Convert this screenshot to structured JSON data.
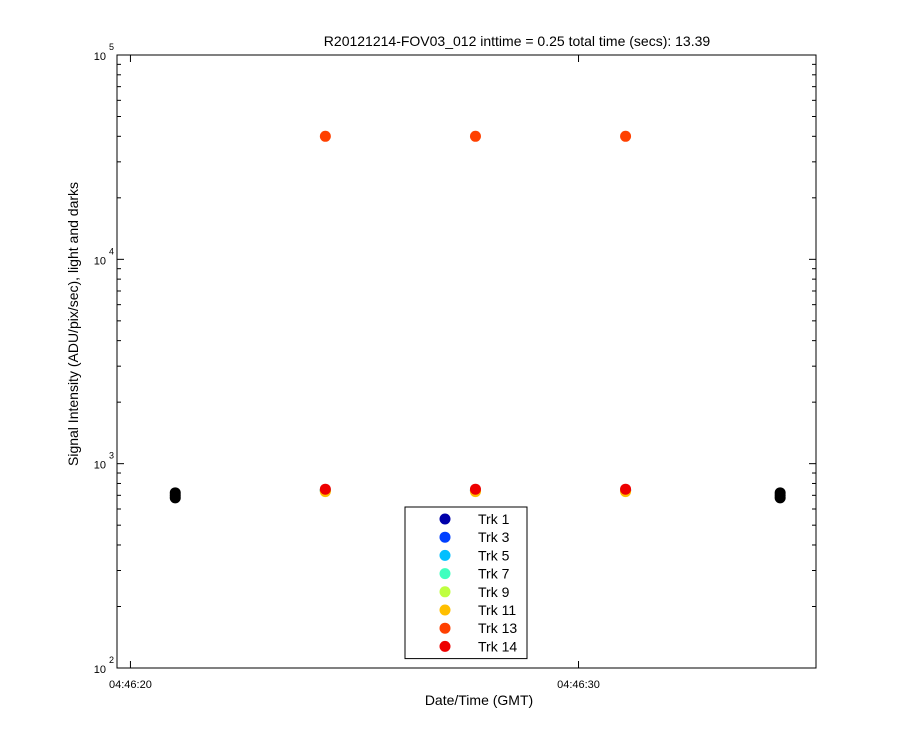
{
  "chart_data": {
    "type": "scatter",
    "title": "R20121214-FOV03_012 inttime = 0.25 total time (secs): 13.39",
    "xlabel": "Date/Time (GMT)",
    "ylabel": "Signal Intensity (ADU/pix/sec), light and darks",
    "yscale": "log",
    "ylim": [
      100,
      100000
    ],
    "xlim_seconds_after_04_46_20": [
      -0.3,
      15.3
    ],
    "x_ticks": [
      {
        "label": "04:46:20",
        "seconds": 0
      },
      {
        "label": "04:46:30",
        "seconds": 10
      }
    ],
    "y_ticks": [
      {
        "base": "10",
        "exp": "2",
        "value": 100
      },
      {
        "base": "10",
        "exp": "3",
        "value": 1000
      },
      {
        "base": "10",
        "exp": "4",
        "value": 10000
      },
      {
        "base": "10",
        "exp": "5",
        "value": 100000
      }
    ],
    "grid": false,
    "legend_position": "bottom-center",
    "series": [
      {
        "name": "Trk 1",
        "color": "#0000aa",
        "x": [
          4.35,
          7.7,
          11.05
        ],
        "y": [
          740,
          740,
          740
        ]
      },
      {
        "name": "Trk 3",
        "color": "#0040ff",
        "x": [
          4.35,
          7.7,
          11.05
        ],
        "y": [
          740,
          740,
          740
        ]
      },
      {
        "name": "Trk 5",
        "color": "#00bfff",
        "x": [
          4.35,
          7.7,
          11.05
        ],
        "y": [
          740,
          740,
          740
        ]
      },
      {
        "name": "Trk 7",
        "color": "#40ffbf",
        "x": [
          4.35,
          7.7,
          11.05
        ],
        "y": [
          740,
          740,
          740
        ]
      },
      {
        "name": "Trk 9",
        "color": "#bfff40",
        "x": [
          4.35,
          7.7,
          11.05
        ],
        "y": [
          740,
          740,
          740
        ]
      },
      {
        "name": "Trk 11",
        "color": "#ffbf00",
        "x": [
          4.35,
          7.7,
          11.05
        ],
        "y": [
          730,
          730,
          730
        ]
      },
      {
        "name": "Trk 13",
        "color": "#ff4000",
        "x": [
          4.35,
          7.7,
          11.05
        ],
        "y": [
          40000,
          40000,
          40000
        ]
      },
      {
        "name": "Trk 14",
        "color": "#ee0000",
        "x": [
          4.35,
          7.7,
          11.05
        ],
        "y": [
          750,
          750,
          750
        ]
      }
    ],
    "darks": {
      "color": "#000000",
      "x": [
        1.0,
        1.0,
        1.0,
        14.5,
        14.5,
        14.5
      ],
      "y": [
        680,
        700,
        720,
        680,
        700,
        720
      ]
    }
  }
}
